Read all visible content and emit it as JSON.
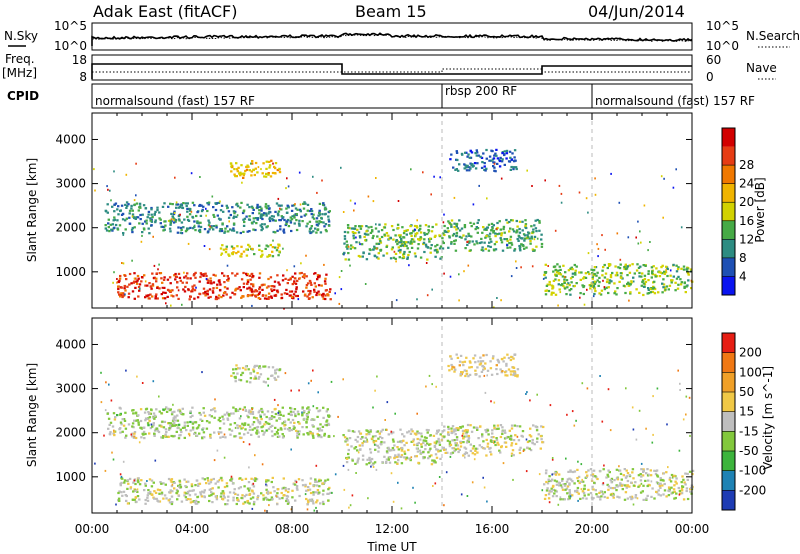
{
  "header": {
    "station": "Adak East (fitACF)",
    "beam": "Beam 15",
    "date": "04/Jun/2014"
  },
  "noise_panel": {
    "left_label": "N.Sky",
    "right_label": "N.Search",
    "left_ticks": [
      "10^5",
      "10^0"
    ],
    "right_ticks": [
      "10^5",
      "10^0"
    ]
  },
  "freq_panel": {
    "left_label_1": "Freq.",
    "left_label_2": "[MHz]",
    "right_label": "Nave",
    "left_ticks": [
      "18",
      "8"
    ],
    "right_ticks": [
      "60",
      "0"
    ]
  },
  "cpid": {
    "label": "CPID",
    "segments": [
      {
        "text": "normalsound (fast) 157 RF",
        "start_hour": 0
      },
      {
        "text": "rbsp 200 RF",
        "start_hour": 14
      },
      {
        "text": "normalsound (fast) 157 RF",
        "start_hour": 20
      }
    ]
  },
  "x_axis": {
    "label": "Time UT",
    "ticks": [
      "00:00",
      "04:00",
      "08:00",
      "12:00",
      "16:00",
      "20:00",
      "00:00"
    ],
    "range_hours": [
      0,
      24
    ]
  },
  "power_colorbar": {
    "label": "Power [dB]",
    "ticks": [
      "4",
      "8",
      "12",
      "16",
      "20",
      "24",
      "28"
    ],
    "colors": [
      "#0a14f0",
      "#1e50b4",
      "#2d8c82",
      "#46aa46",
      "#d2d200",
      "#f0b400",
      "#f07800",
      "#e63c14",
      "#d20000"
    ]
  },
  "velocity_colorbar": {
    "label": "Velocity [m s^-1]",
    "ticks": [
      "200",
      "100",
      "50",
      "15",
      "-15",
      "-50",
      "-100",
      "-200"
    ],
    "colors": [
      "#1e3cb4",
      "#1e82b4",
      "#3cb43c",
      "#82c83c",
      "#bebebe",
      "#f0c846",
      "#f0a028",
      "#f07814",
      "#e61e14"
    ]
  },
  "chart_data": [
    {
      "type": "heatmap",
      "title": "",
      "xlabel": "Time UT",
      "ylabel": "Slant Range [km]",
      "yticks": [
        "1000",
        "2000",
        "3000",
        "4000"
      ],
      "ylim": [
        180,
        4600
      ],
      "value_label": "Power [dB]",
      "value_range": [
        2,
        30
      ],
      "echo_regions": [
        {
          "x": [
            1.0,
            9.5
          ],
          "y": [
            400,
            1000
          ],
          "value": 26
        },
        {
          "x": [
            5.5,
            7.5
          ],
          "y": [
            3150,
            3550
          ],
          "value": 18
        },
        {
          "x": [
            0.5,
            9.5
          ],
          "y": [
            1900,
            2600
          ],
          "value": 10
        },
        {
          "x": [
            5.0,
            7.5
          ],
          "y": [
            1350,
            1650
          ],
          "value": 16
        },
        {
          "x": [
            10.0,
            14.0
          ],
          "y": [
            1300,
            2100
          ],
          "value": 13
        },
        {
          "x": [
            14.0,
            18.0
          ],
          "y": [
            1500,
            2200
          ],
          "value": 12
        },
        {
          "x": [
            14.2,
            17.0
          ],
          "y": [
            3300,
            3800
          ],
          "value": 7
        },
        {
          "x": [
            18.0,
            24.0
          ],
          "y": [
            500,
            1200
          ],
          "value": 14
        }
      ]
    },
    {
      "type": "heatmap",
      "title": "",
      "xlabel": "Time UT",
      "ylabel": "Slant Range [km]",
      "yticks": [
        "1000",
        "2000",
        "3000",
        "4000"
      ],
      "ylim": [
        180,
        4600
      ],
      "value_label": "Velocity [m s^-1]",
      "value_range": [
        -250,
        250
      ],
      "echo_regions": [
        {
          "x": [
            1.0,
            9.5
          ],
          "y": [
            400,
            1000
          ],
          "value": 0
        },
        {
          "x": [
            5.5,
            7.5
          ],
          "y": [
            3150,
            3550
          ],
          "value": -20
        },
        {
          "x": [
            0.5,
            9.5
          ],
          "y": [
            1900,
            2600
          ],
          "value": -25
        },
        {
          "x": [
            10.0,
            14.0
          ],
          "y": [
            1300,
            2100
          ],
          "value": -5
        },
        {
          "x": [
            14.0,
            18.0
          ],
          "y": [
            1500,
            2200
          ],
          "value": 0
        },
        {
          "x": [
            14.2,
            17.0
          ],
          "y": [
            3300,
            3800
          ],
          "value": 35
        },
        {
          "x": [
            18.0,
            24.0
          ],
          "y": [
            500,
            1200
          ],
          "value": 0
        }
      ]
    }
  ]
}
